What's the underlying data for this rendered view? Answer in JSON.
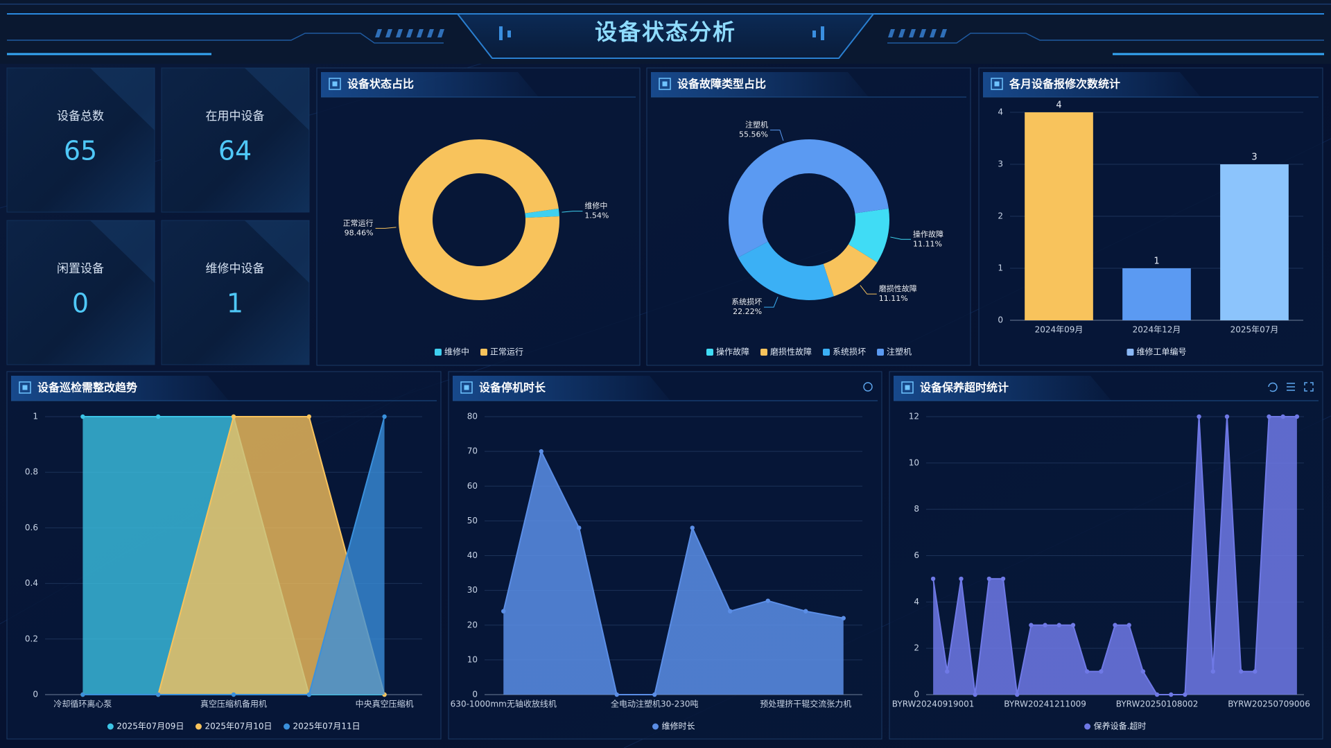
{
  "header": {
    "title": "设备状态分析"
  },
  "stats": [
    {
      "label": "设备总数",
      "value": 65
    },
    {
      "label": "在用中设备",
      "value": 64
    },
    {
      "label": "闲置设备",
      "value": 0
    },
    {
      "label": "维修中设备",
      "value": 1
    }
  ],
  "chart_data": [
    {
      "type": "pie",
      "title": "设备状态占比",
      "categories": [
        "维修中",
        "正常运行"
      ],
      "values": [
        1.54,
        98.46
      ],
      "value_labels": [
        "1.54%",
        "98.46%"
      ],
      "colors": [
        "#3fd0f0",
        "#f8c35c"
      ],
      "legend": "bottom"
    },
    {
      "type": "pie",
      "title": "设备故障类型占比",
      "categories": [
        "操作故障",
        "磨损性故障",
        "系统损坏",
        "注塑机"
      ],
      "values": [
        11.11,
        11.11,
        22.22,
        55.56
      ],
      "value_labels": [
        "11.11%",
        "11.11%",
        "22.22%",
        "55.56%"
      ],
      "colors": [
        "#40dcf5",
        "#f8c35c",
        "#3bb0f5",
        "#5b9af2"
      ],
      "legend": "bottom"
    },
    {
      "type": "bar",
      "title": "各月设备报修次数统计",
      "categories": [
        "2024年09月",
        "2024年12月",
        "2025年07月"
      ],
      "series": [
        {
          "name": "维修工单编号",
          "color": "#8ab8f6",
          "colors": [
            "#f8c35c",
            "#5b9af2",
            "#8cc4fc"
          ],
          "values": [
            4,
            1,
            3
          ]
        }
      ],
      "ylim": [
        0,
        4
      ],
      "yticks": [
        0,
        1,
        2,
        3,
        4
      ],
      "grid": true,
      "legend": "bottom"
    },
    {
      "type": "area",
      "title": "设备巡检需整改趋势",
      "categories": [
        "冷却循环离心泵",
        null,
        "真空压缩机备用机",
        null,
        "中央真空压缩机"
      ],
      "series": [
        {
          "name": "2025年07月09日",
          "color": "#3cc4e6",
          "values": [
            1,
            1,
            1,
            0,
            0
          ]
        },
        {
          "name": "2025年07月10日",
          "color": "#f8c35c",
          "values": [
            0,
            0,
            1,
            1,
            0
          ]
        },
        {
          "name": "2025年07月11日",
          "color": "#3a90dc",
          "values": [
            0,
            0,
            0,
            0,
            1
          ]
        }
      ],
      "ylim": [
        0,
        1
      ],
      "yticks": [
        0,
        0.2,
        0.4,
        0.6,
        0.8,
        1
      ],
      "grid": true,
      "legend": "bottom"
    },
    {
      "type": "area",
      "title": "设备停机时长",
      "categories": [
        "630-1000mm无轴收放线机",
        null,
        null,
        null,
        "全电动注塑机30-230吨",
        null,
        null,
        null,
        "预处理挤干辊交流张力机",
        null
      ],
      "series": [
        {
          "name": "维修时长",
          "color": "#5b8ee6",
          "values": [
            24,
            70,
            48,
            0,
            0,
            48,
            24,
            27,
            24,
            22
          ]
        }
      ],
      "ylim": [
        0,
        80
      ],
      "yticks": [
        0,
        10,
        20,
        30,
        40,
        50,
        60,
        70,
        80
      ],
      "grid": true,
      "legend": "bottom"
    },
    {
      "type": "area",
      "title": "设备保养超时统计",
      "categories": [
        "BYRW20240919001",
        null,
        null,
        null,
        null,
        null,
        null,
        null,
        "BYRW20241211009",
        null,
        null,
        null,
        null,
        null,
        null,
        null,
        "BYRW20250108002",
        null,
        null,
        null,
        null,
        null,
        null,
        null,
        "BYRW20250709006",
        null,
        null
      ],
      "series": [
        {
          "name": "保养设备.超时",
          "color": "#6f79e6",
          "values": [
            5,
            1,
            5,
            0,
            5,
            5,
            0,
            3,
            3,
            3,
            3,
            1,
            1,
            3,
            3,
            1,
            0,
            0,
            0,
            12,
            1,
            12,
            1,
            1,
            12,
            12,
            12
          ]
        }
      ],
      "ylim": [
        0,
        12
      ],
      "yticks": [
        0,
        2,
        4,
        6,
        8,
        10,
        12
      ],
      "grid": true,
      "legend": "bottom"
    }
  ]
}
